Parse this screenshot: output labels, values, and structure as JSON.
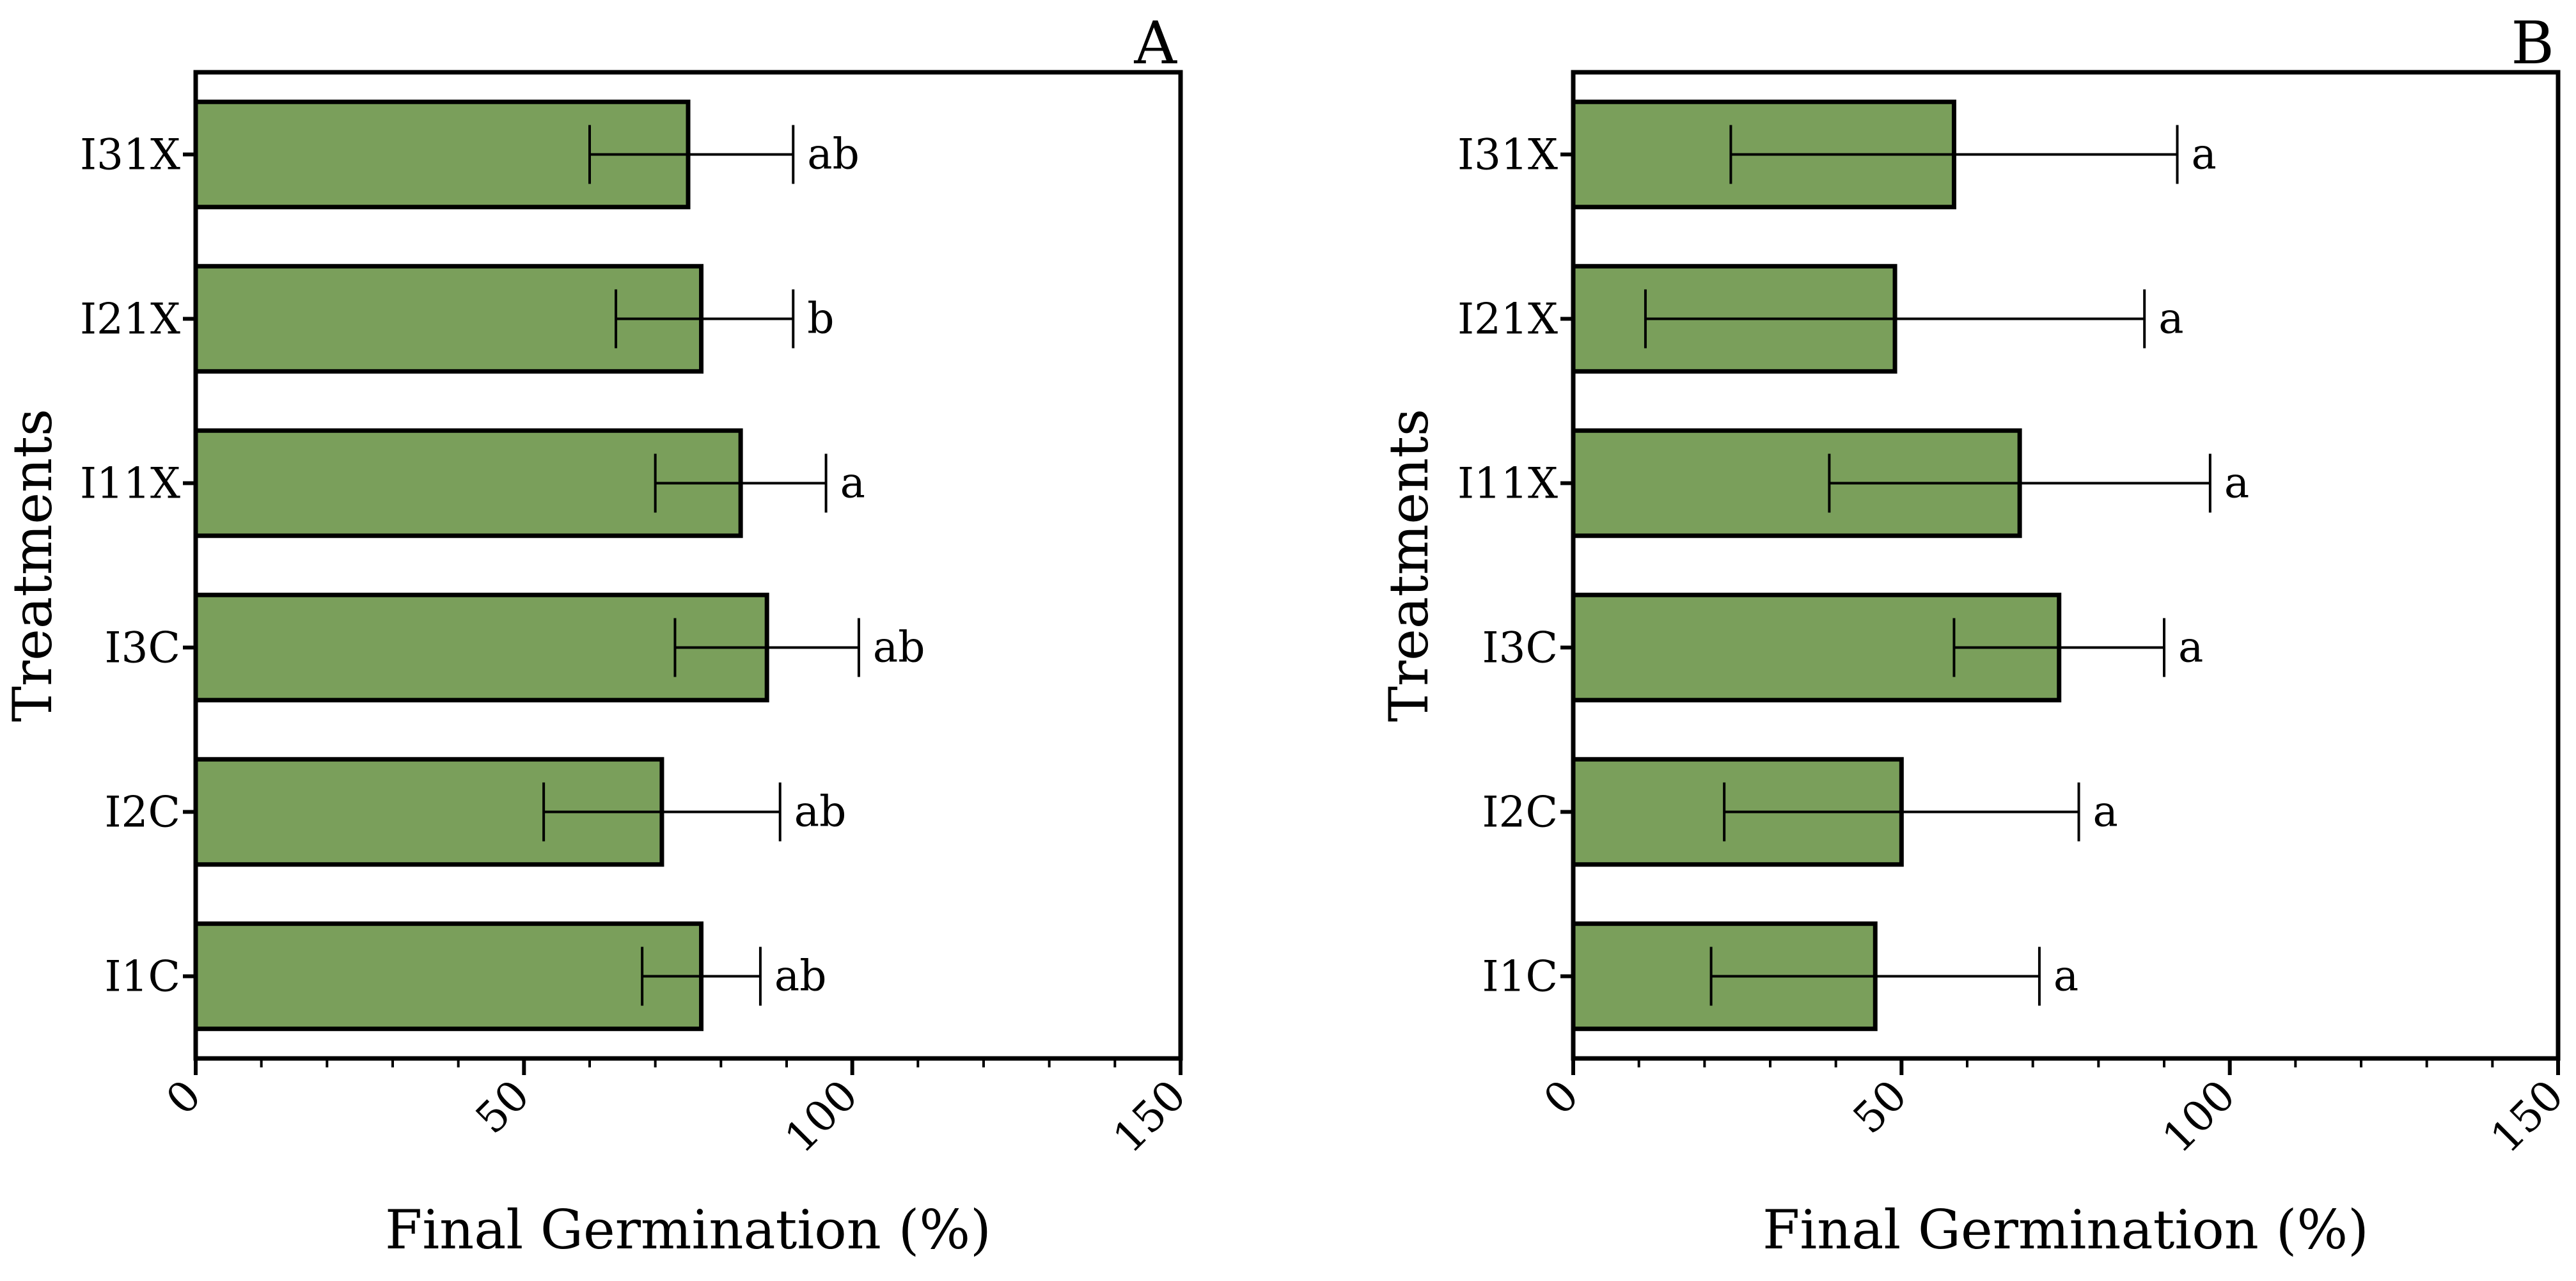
{
  "figure": {
    "colors": {
      "bar_fill": "#7a9f5b",
      "bar_stroke": "#000000",
      "axis": "#000000"
    }
  },
  "chart_data": [
    {
      "type": "bar",
      "orientation": "horizontal",
      "panel_label": "A",
      "categories": [
        "I31X",
        "I21X",
        "I11X",
        "I3C",
        "I2C",
        "I1C"
      ],
      "values": [
        75,
        77,
        83,
        87,
        71,
        77
      ],
      "error_low": [
        60,
        64,
        70,
        73,
        53,
        68
      ],
      "error_high": [
        91,
        91,
        96,
        101,
        89,
        86
      ],
      "significance": [
        "ab",
        "b",
        "a",
        "ab",
        "ab",
        "ab"
      ],
      "xlabel": "Final Germination (%)",
      "ylabel": "Treatments",
      "xlim": [
        0,
        150
      ],
      "xticks": [
        "0",
        "50",
        "100",
        "150"
      ],
      "grid": false
    },
    {
      "type": "bar",
      "orientation": "horizontal",
      "panel_label": "B",
      "categories": [
        "I31X",
        "I21X",
        "I11X",
        "I3C",
        "I2C",
        "I1C"
      ],
      "values": [
        58,
        49,
        68,
        74,
        50,
        46
      ],
      "error_low": [
        24,
        11,
        39,
        58,
        23,
        21
      ],
      "error_high": [
        92,
        87,
        97,
        90,
        77,
        71
      ],
      "significance": [
        "a",
        "a",
        "a",
        "a",
        "a",
        "a"
      ],
      "xlabel": "Final Germination (%)",
      "ylabel": "Treatments",
      "xlim": [
        0,
        150
      ],
      "xticks": [
        "0",
        "50",
        "100",
        "150"
      ],
      "grid": false
    }
  ]
}
